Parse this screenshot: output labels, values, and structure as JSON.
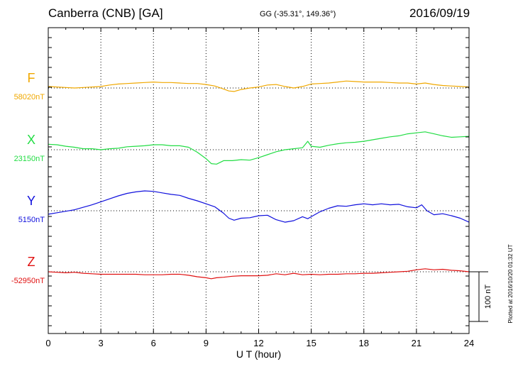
{
  "header": {
    "title": "Canberra (CNB)  [GA]",
    "coords": "GG (-35.31°, 149.36°)",
    "date": "2016/09/19"
  },
  "plotted": "Plotted at 2016/10/20 01:32 UT",
  "scale_label": "100 nT",
  "chart_data": {
    "type": "line",
    "xlabel": "U T (hour)",
    "xlim": [
      0,
      24
    ],
    "xticks": [
      0,
      3,
      6,
      9,
      12,
      15,
      18,
      21,
      24
    ],
    "scale_nT": 100,
    "series": [
      {
        "name": "F",
        "baseline_label": "58020nT",
        "color": "#f0a800",
        "baseline_nT": 58020,
        "points": [
          [
            0,
            58023
          ],
          [
            0.5,
            58022
          ],
          [
            1,
            58021
          ],
          [
            1.5,
            58020
          ],
          [
            2,
            58021
          ],
          [
            2.5,
            58022
          ],
          [
            3,
            58023
          ],
          [
            3.5,
            58026
          ],
          [
            4,
            58028
          ],
          [
            4.5,
            58029
          ],
          [
            5,
            58030
          ],
          [
            5.5,
            58031
          ],
          [
            6,
            58032
          ],
          [
            6.5,
            58031
          ],
          [
            7,
            58031
          ],
          [
            7.5,
            58030
          ],
          [
            8,
            58029
          ],
          [
            8.5,
            58029
          ],
          [
            9,
            58027
          ],
          [
            9.5,
            58024
          ],
          [
            10,
            58018
          ],
          [
            10.3,
            58014
          ],
          [
            10.6,
            58013
          ],
          [
            11,
            58017
          ],
          [
            11.5,
            58020
          ],
          [
            12,
            58022
          ],
          [
            12.5,
            58026
          ],
          [
            13,
            58027
          ],
          [
            13.5,
            58023
          ],
          [
            14,
            58020
          ],
          [
            14.5,
            58023
          ],
          [
            15,
            58028
          ],
          [
            15.5,
            58029
          ],
          [
            16,
            58030
          ],
          [
            16.5,
            58032
          ],
          [
            17,
            58034
          ],
          [
            17.5,
            58033
          ],
          [
            18,
            58032
          ],
          [
            18.5,
            58032
          ],
          [
            19,
            58032
          ],
          [
            19.5,
            58031
          ],
          [
            20,
            58030
          ],
          [
            20.5,
            58030
          ],
          [
            21,
            58028
          ],
          [
            21.5,
            58030
          ],
          [
            22,
            58027
          ],
          [
            22.5,
            58025
          ],
          [
            23,
            58024
          ],
          [
            23.5,
            58023
          ],
          [
            24,
            58022
          ]
        ]
      },
      {
        "name": "X",
        "baseline_label": "23150nT",
        "color": "#22dd44",
        "baseline_nT": 23150,
        "points": [
          [
            0,
            23161
          ],
          [
            0.5,
            23160
          ],
          [
            1,
            23157
          ],
          [
            1.5,
            23155
          ],
          [
            2,
            23152
          ],
          [
            2.5,
            23152
          ],
          [
            3,
            23150
          ],
          [
            3.5,
            23152
          ],
          [
            4,
            23153
          ],
          [
            4.5,
            23156
          ],
          [
            5,
            23157
          ],
          [
            5.5,
            23158
          ],
          [
            6,
            23160
          ],
          [
            6.5,
            23160
          ],
          [
            7,
            23158
          ],
          [
            7.5,
            23158
          ],
          [
            8,
            23155
          ],
          [
            8.5,
            23145
          ],
          [
            9,
            23132
          ],
          [
            9.3,
            23122
          ],
          [
            9.6,
            23121
          ],
          [
            10,
            23128
          ],
          [
            10.5,
            23128
          ],
          [
            11,
            23130
          ],
          [
            11.5,
            23129
          ],
          [
            12,
            23134
          ],
          [
            12.5,
            23140
          ],
          [
            13,
            23146
          ],
          [
            13.5,
            23150
          ],
          [
            14,
            23152
          ],
          [
            14.5,
            23154
          ],
          [
            14.8,
            23167
          ],
          [
            15,
            23157
          ],
          [
            15.5,
            23155
          ],
          [
            16,
            23159
          ],
          [
            16.5,
            23162
          ],
          [
            17,
            23164
          ],
          [
            17.5,
            23165
          ],
          [
            18,
            23167
          ],
          [
            18.5,
            23170
          ],
          [
            19,
            23173
          ],
          [
            19.5,
            23176
          ],
          [
            20,
            23178
          ],
          [
            20.5,
            23182
          ],
          [
            21,
            23184
          ],
          [
            21.5,
            23186
          ],
          [
            22,
            23182
          ],
          [
            22.5,
            23178
          ],
          [
            23,
            23175
          ],
          [
            23.5,
            23176
          ],
          [
            24,
            23177
          ]
        ]
      },
      {
        "name": "Y",
        "baseline_label": "5150nT",
        "color": "#1010dd",
        "baseline_nT": 5150,
        "points": [
          [
            0,
            5143
          ],
          [
            0.5,
            5146
          ],
          [
            1,
            5149
          ],
          [
            1.5,
            5152
          ],
          [
            2,
            5157
          ],
          [
            2.5,
            5162
          ],
          [
            3,
            5168
          ],
          [
            3.5,
            5174
          ],
          [
            4,
            5180
          ],
          [
            4.5,
            5185
          ],
          [
            5,
            5188
          ],
          [
            5.5,
            5190
          ],
          [
            6,
            5189
          ],
          [
            6.5,
            5186
          ],
          [
            7,
            5183
          ],
          [
            7.5,
            5181
          ],
          [
            8,
            5175
          ],
          [
            8.5,
            5170
          ],
          [
            9,
            5164
          ],
          [
            9.5,
            5158
          ],
          [
            10,
            5145
          ],
          [
            10.3,
            5135
          ],
          [
            10.6,
            5131
          ],
          [
            11,
            5135
          ],
          [
            11.5,
            5136
          ],
          [
            12,
            5140
          ],
          [
            12.5,
            5141
          ],
          [
            13,
            5132
          ],
          [
            13.5,
            5127
          ],
          [
            14,
            5130
          ],
          [
            14.5,
            5138
          ],
          [
            14.8,
            5134
          ],
          [
            15,
            5138
          ],
          [
            15.5,
            5148
          ],
          [
            16,
            5155
          ],
          [
            16.5,
            5160
          ],
          [
            17,
            5159
          ],
          [
            17.5,
            5162
          ],
          [
            18,
            5164
          ],
          [
            18.5,
            5162
          ],
          [
            19,
            5164
          ],
          [
            19.5,
            5162
          ],
          [
            20,
            5163
          ],
          [
            20.5,
            5158
          ],
          [
            21,
            5156
          ],
          [
            21.3,
            5162
          ],
          [
            21.6,
            5150
          ],
          [
            22,
            5142
          ],
          [
            22.5,
            5144
          ],
          [
            23,
            5140
          ],
          [
            23.5,
            5135
          ],
          [
            24,
            5127
          ]
        ]
      },
      {
        "name": "Z",
        "baseline_label": "-52950nT",
        "color": "#e01010",
        "baseline_nT": -52950,
        "points": [
          [
            0,
            -52950
          ],
          [
            0.5,
            -52951
          ],
          [
            1,
            -52952
          ],
          [
            1.5,
            -52951
          ],
          [
            2,
            -52953
          ],
          [
            2.5,
            -52954
          ],
          [
            3,
            -52955
          ],
          [
            3.5,
            -52955
          ],
          [
            4,
            -52955
          ],
          [
            4.5,
            -52955
          ],
          [
            5,
            -52955
          ],
          [
            5.5,
            -52956
          ],
          [
            6,
            -52956
          ],
          [
            6.5,
            -52956
          ],
          [
            7,
            -52955
          ],
          [
            7.5,
            -52955
          ],
          [
            8,
            -52957
          ],
          [
            8.5,
            -52960
          ],
          [
            9,
            -52962
          ],
          [
            9.3,
            -52964
          ],
          [
            9.6,
            -52962
          ],
          [
            10,
            -52961
          ],
          [
            10.5,
            -52959
          ],
          [
            11,
            -52958
          ],
          [
            11.5,
            -52958
          ],
          [
            12,
            -52958
          ],
          [
            12.5,
            -52957
          ],
          [
            13,
            -52954
          ],
          [
            13.5,
            -52956
          ],
          [
            14,
            -52953
          ],
          [
            14.5,
            -52956
          ],
          [
            15,
            -52955
          ],
          [
            15.5,
            -52956
          ],
          [
            16,
            -52955
          ],
          [
            16.5,
            -52955
          ],
          [
            17,
            -52954
          ],
          [
            17.5,
            -52954
          ],
          [
            18,
            -52953
          ],
          [
            18.5,
            -52953
          ],
          [
            19,
            -52952
          ],
          [
            19.5,
            -52951
          ],
          [
            20,
            -52950
          ],
          [
            20.5,
            -52949
          ],
          [
            21,
            -52946
          ],
          [
            21.5,
            -52944
          ],
          [
            22,
            -52946
          ],
          [
            22.5,
            -52945
          ],
          [
            23,
            -52947
          ],
          [
            23.5,
            -52948
          ],
          [
            24,
            -52950
          ]
        ]
      }
    ]
  }
}
